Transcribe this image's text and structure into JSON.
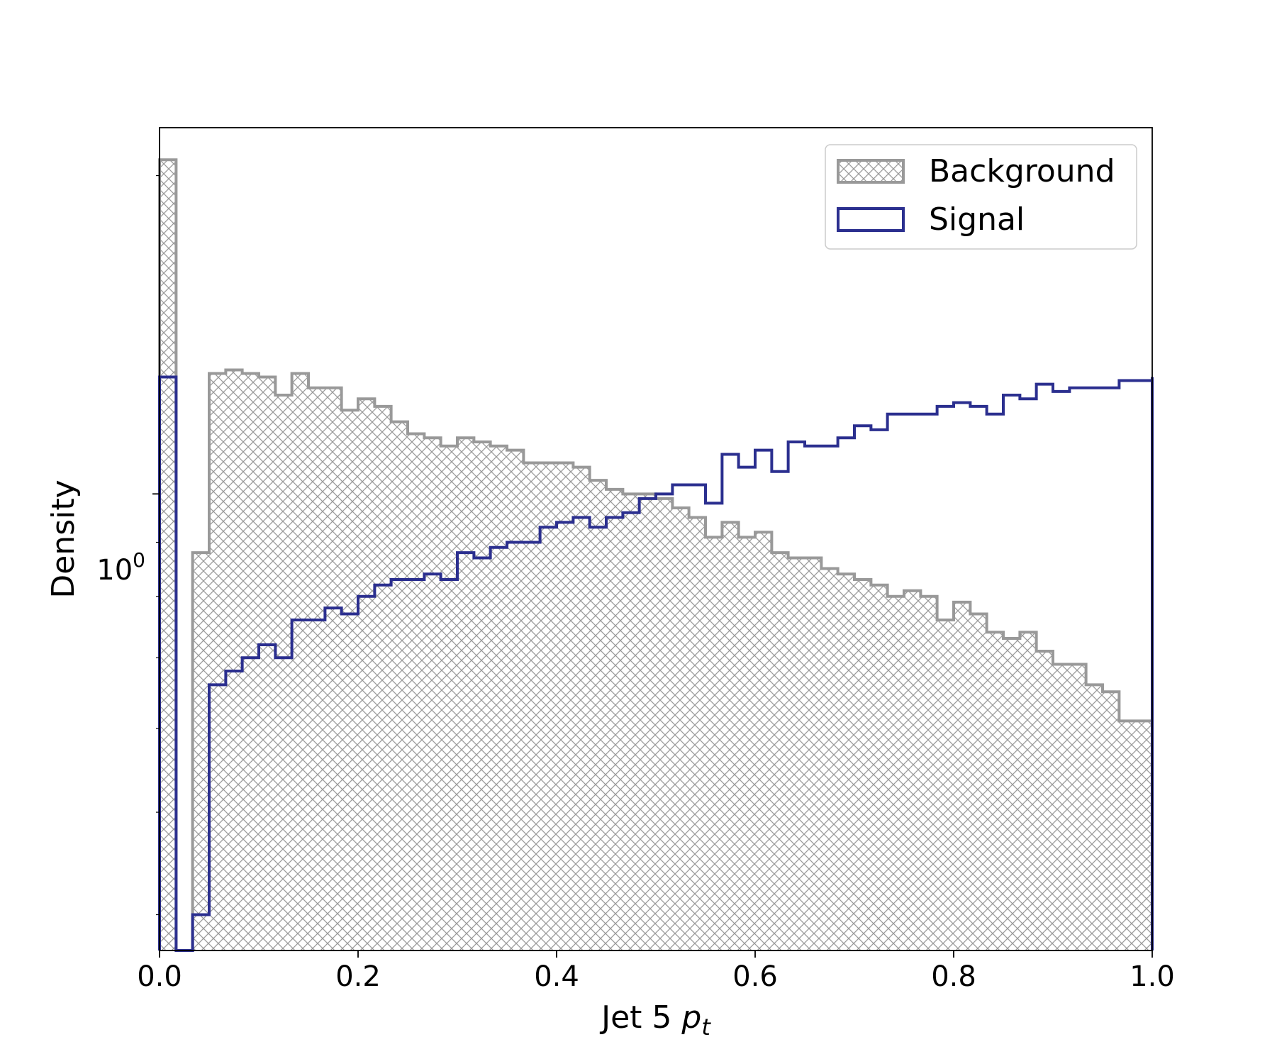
{
  "chart_data": {
    "type": "histogram-step",
    "xlabel_text": "Jet 5",
    "xlabel_var": "p",
    "xlabel_sub": "t",
    "ylabel": "Density",
    "xlim": [
      0.0,
      1.0
    ],
    "ylim": [
      0.37,
      2.22
    ],
    "yscale": "log",
    "x_ticks": [
      0.0,
      0.2,
      0.4,
      0.6,
      0.8,
      1.0
    ],
    "x_tick_labels": [
      "0.0",
      "0.2",
      "0.4",
      "0.6",
      "0.8",
      "1.0"
    ],
    "y_tick_label_base": "10",
    "y_tick_label_exp": "0",
    "y_tick_value": 1.0,
    "y_minor_ticks": [
      0.4,
      0.5,
      0.6,
      0.7,
      0.8,
      0.9,
      2.0
    ],
    "bin_edges": [
      0.0,
      0.0167,
      0.0333,
      0.05,
      0.0667,
      0.0833,
      0.1,
      0.1167,
      0.1333,
      0.15,
      0.1667,
      0.1833,
      0.2,
      0.2167,
      0.2333,
      0.25,
      0.2667,
      0.2833,
      0.3,
      0.3167,
      0.3333,
      0.35,
      0.3667,
      0.3833,
      0.4,
      0.4167,
      0.4333,
      0.45,
      0.4667,
      0.4833,
      0.5,
      0.5167,
      0.5333,
      0.55,
      0.5667,
      0.5833,
      0.6,
      0.6167,
      0.6333,
      0.65,
      0.6667,
      0.6833,
      0.7,
      0.7167,
      0.7333,
      0.75,
      0.7667,
      0.7833,
      0.8,
      0.8167,
      0.8333,
      0.85,
      0.8667,
      0.8833,
      0.9,
      0.9167,
      0.9333,
      0.95,
      0.9667,
      0.9833,
      1.0
    ],
    "series": [
      {
        "name": "Background",
        "style": "hatched",
        "color": "#999999",
        "values": [
          2.07,
          0.0,
          0.88,
          1.3,
          1.31,
          1.3,
          1.29,
          1.24,
          1.3,
          1.26,
          1.26,
          1.2,
          1.23,
          1.21,
          1.17,
          1.14,
          1.13,
          1.11,
          1.13,
          1.12,
          1.11,
          1.1,
          1.07,
          1.07,
          1.07,
          1.06,
          1.03,
          1.01,
          1.0,
          1.0,
          0.99,
          0.97,
          0.95,
          0.91,
          0.94,
          0.91,
          0.92,
          0.88,
          0.87,
          0.87,
          0.85,
          0.84,
          0.83,
          0.82,
          0.8,
          0.81,
          0.8,
          0.76,
          0.79,
          0.77,
          0.74,
          0.73,
          0.74,
          0.71,
          0.69,
          0.69,
          0.66,
          0.65,
          0.61,
          0.61,
          0.61
        ]
      },
      {
        "name": "Signal",
        "style": "step",
        "color": "#2b2f8f",
        "values": [
          1.29,
          0.0,
          0.4,
          0.66,
          0.68,
          0.7,
          0.72,
          0.7,
          0.76,
          0.76,
          0.78,
          0.77,
          0.8,
          0.82,
          0.83,
          0.83,
          0.84,
          0.83,
          0.88,
          0.87,
          0.89,
          0.9,
          0.9,
          0.93,
          0.94,
          0.95,
          0.93,
          0.95,
          0.96,
          0.99,
          1.0,
          1.02,
          1.02,
          0.98,
          1.09,
          1.06,
          1.1,
          1.05,
          1.12,
          1.11,
          1.11,
          1.13,
          1.16,
          1.15,
          1.19,
          1.19,
          1.19,
          1.21,
          1.22,
          1.21,
          1.19,
          1.24,
          1.23,
          1.27,
          1.25,
          1.26,
          1.26,
          1.26,
          1.28,
          1.28,
          1.29
        ]
      }
    ],
    "legend": {
      "position": "top-right",
      "entries": [
        "Background",
        "Signal"
      ]
    },
    "grid": false
  }
}
